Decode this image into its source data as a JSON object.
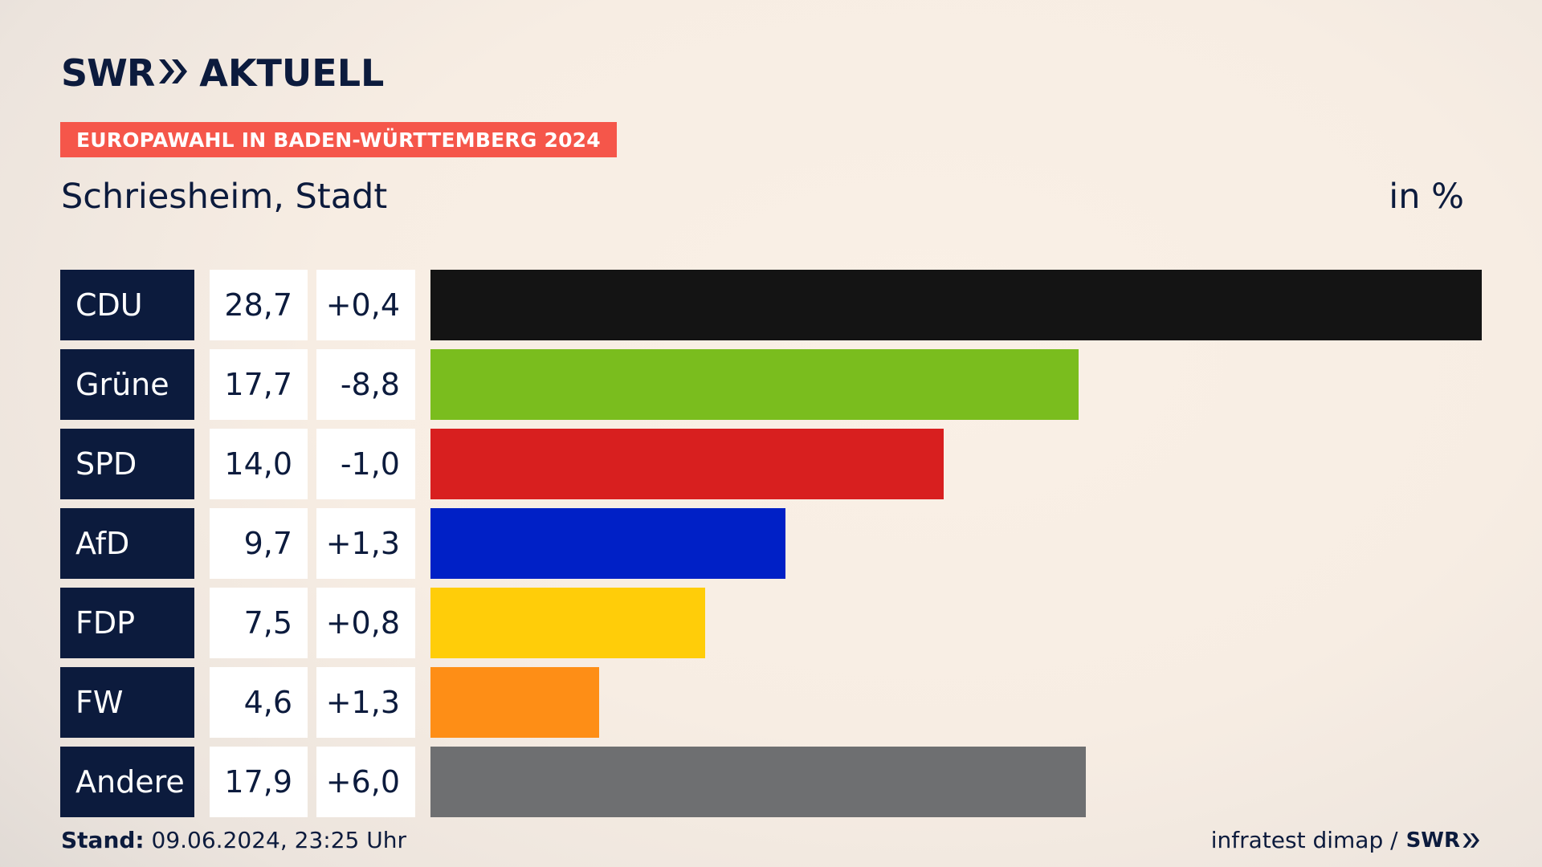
{
  "header": {
    "brand": "SWR",
    "brand_suffix": "AKTUELL",
    "badge": "EUROPAWAHL IN BADEN-WÜRTTEMBERG 2024",
    "subtitle": "Schriesheim, Stadt",
    "unit": "in %"
  },
  "colors": {
    "navy": "#0c1b3d",
    "badge": "#f5564a"
  },
  "chart_data": {
    "type": "bar",
    "orientation": "horizontal",
    "categories": [
      "CDU",
      "Grüne",
      "SPD",
      "AfD",
      "FDP",
      "FW",
      "Andere"
    ],
    "values": [
      28.7,
      17.7,
      14.0,
      9.7,
      7.5,
      4.6,
      17.9
    ],
    "values_label": [
      "28,7",
      "17,7",
      "14,0",
      "9,7",
      "7,5",
      "4,6",
      "17,9"
    ],
    "diff_label": [
      "+0,4",
      "-8,8",
      "-1,0",
      "+1,3",
      "+0,8",
      "+1,3",
      "+6,0"
    ],
    "colors": [
      "#141414",
      "#7abd1e",
      "#d81f1f",
      "#0020c6",
      "#ffcd09",
      "#fe8e16",
      "#6e6f71"
    ],
    "xlim": [
      0,
      28.7
    ]
  },
  "footer": {
    "stand_label": "Stand:",
    "stand_value": " 09.06.2024, 23:25 Uhr",
    "source": "infratest dimap /",
    "source_brand": "SWR"
  }
}
